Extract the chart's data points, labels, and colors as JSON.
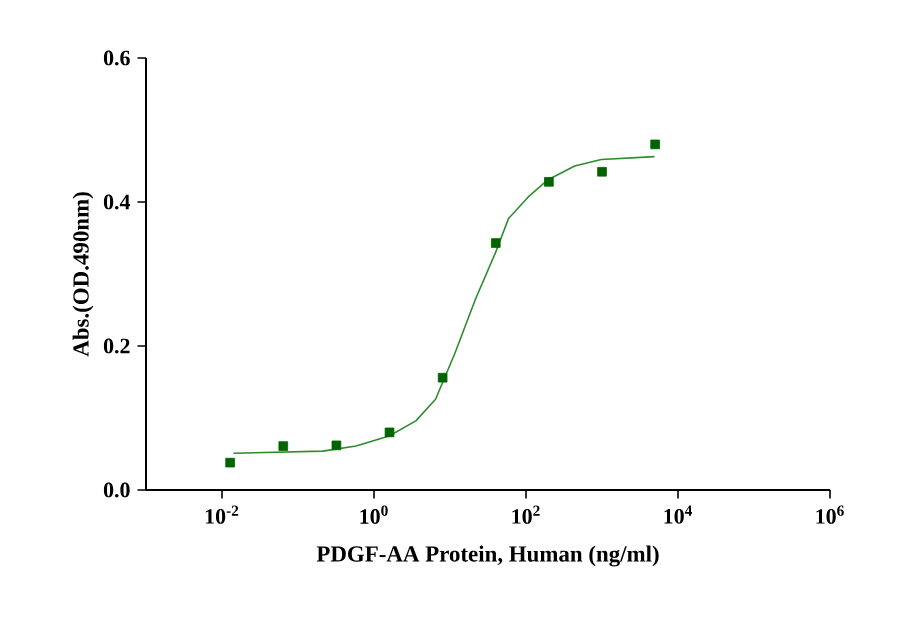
{
  "chart_data": {
    "type": "scatter",
    "xlabel": "PDGF-AA Protein, Human  (ng/ml)",
    "ylabel": "Abs.(OD.490nm)",
    "log": "x",
    "xlim": [
      0.001,
      1000000
    ],
    "ylim": [
      0,
      0.6
    ],
    "xticks": [
      {
        "value": 0.01,
        "label": "10$^{-2}$"
      },
      {
        "value": 1,
        "label": "10$^{0}$"
      },
      {
        "value": 100,
        "label": "10$^{2}$"
      },
      {
        "value": 10000,
        "label": "10$^{4}$"
      },
      {
        "value": 1000000,
        "label": "10$^{6}$"
      }
    ],
    "yticks": [
      {
        "value": 0,
        "label": "0.0"
      },
      {
        "value": 0.2,
        "label": "0.2"
      },
      {
        "value": 0.4,
        "label": "0.4"
      },
      {
        "value": 0.6,
        "label": "0.6"
      }
    ],
    "grid": false,
    "series": [
      {
        "type": "scatter",
        "color": "#006400",
        "marker": "square",
        "x": [
          0.0128,
          0.064,
          0.32,
          1.6,
          8,
          40,
          200,
          1000,
          5000
        ],
        "values": [
          0.038,
          0.061,
          0.062,
          0.08,
          0.156,
          0.343,
          0.428,
          0.442,
          0.48
        ]
      },
      {
        "type": "line",
        "color": "#2e8b2e",
        "marker": "none",
        "line_style": "solid",
        "x": [
          0.0141,
          0.212,
          0.581,
          1.58,
          3.55,
          6.46,
          11.7,
          21.6,
          39.8,
          58.9,
          107,
          195,
          437,
          977,
          4900
        ],
        "values": [
          0.051,
          0.054,
          0.061,
          0.075,
          0.096,
          0.126,
          0.191,
          0.265,
          0.33,
          0.377,
          0.407,
          0.431,
          0.45,
          0.459,
          0.463
        ]
      }
    ]
  }
}
